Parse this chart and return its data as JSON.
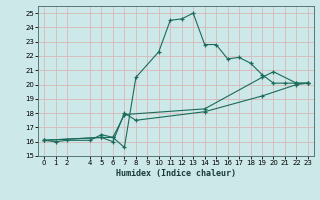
{
  "xlabel": "Humidex (Indice chaleur)",
  "bg_color": "#cde8e8",
  "grid_color": "#c0d8d8",
  "line_color": "#1a6b5a",
  "xlim": [
    -0.5,
    23.5
  ],
  "ylim": [
    15,
    25.5
  ],
  "xticks": [
    0,
    1,
    2,
    4,
    5,
    6,
    7,
    8,
    9,
    10,
    11,
    12,
    13,
    14,
    15,
    16,
    17,
    18,
    19,
    20,
    21,
    22,
    23
  ],
  "yticks": [
    15,
    16,
    17,
    18,
    19,
    20,
    21,
    22,
    23,
    24,
    25
  ],
  "line1_x": [
    0,
    1,
    2,
    4,
    5,
    6,
    7,
    8,
    10,
    11,
    12,
    13,
    14,
    15,
    16,
    17,
    18,
    19,
    20,
    21,
    22,
    23
  ],
  "line1_y": [
    16.1,
    16.0,
    16.1,
    16.1,
    16.5,
    16.3,
    15.6,
    20.5,
    22.3,
    24.5,
    24.6,
    25.0,
    22.8,
    22.8,
    21.8,
    21.9,
    21.5,
    20.7,
    20.1,
    20.1,
    20.1,
    20.1
  ],
  "line2_x": [
    0,
    5,
    6,
    7,
    8,
    14,
    19,
    22,
    23
  ],
  "line2_y": [
    16.1,
    16.3,
    16.0,
    18.0,
    17.5,
    18.1,
    19.2,
    20.0,
    20.1
  ],
  "line3_x": [
    0,
    5,
    6,
    7,
    14,
    19,
    20,
    22,
    23
  ],
  "line3_y": [
    16.1,
    16.3,
    16.3,
    17.9,
    18.3,
    20.5,
    20.9,
    20.1,
    20.1
  ]
}
